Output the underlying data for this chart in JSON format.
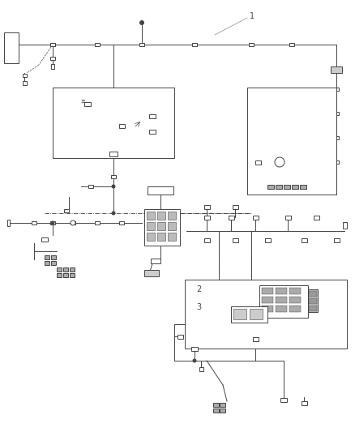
{
  "bg": "#ffffff",
  "lc": "#444444",
  "lc2": "#666666",
  "gray": "#888888",
  "darkgray": "#555555",
  "label1": "1",
  "label2": "2",
  "label3": "3",
  "figsize": [
    4.38,
    5.33
  ],
  "dpi": 100
}
